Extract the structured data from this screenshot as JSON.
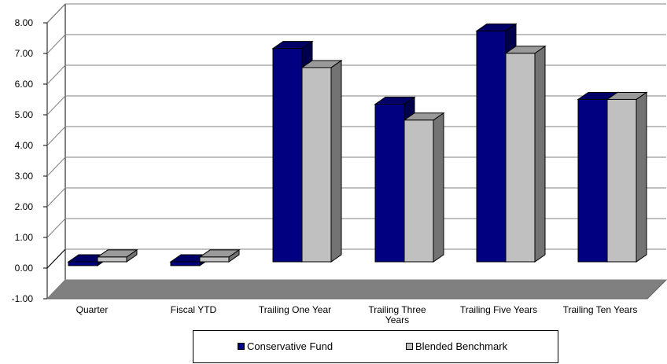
{
  "chart_data": {
    "type": "bar",
    "categories": [
      "Quarter",
      "Fiscal YTD",
      "Trailing One Year",
      "Trailing Three Years",
      "Trailing Five Years",
      "Trailing Ten Years"
    ],
    "series": [
      {
        "name": "Conservative Fund",
        "color": "#000080",
        "values": [
          -0.12,
          -0.12,
          6.7,
          4.95,
          7.25,
          5.1
        ]
      },
      {
        "name": "Blended Benchmark",
        "color": "#C0C0C0",
        "values": [
          0.15,
          0.15,
          6.1,
          4.45,
          6.55,
          5.1
        ]
      }
    ],
    "y_ticks": [
      "8.00",
      "7.00",
      "6.00",
      "5.00",
      "4.00",
      "3.00",
      "2.00",
      "1.00",
      "0.00",
      "-1.00"
    ],
    "ylim": [
      -1,
      8
    ],
    "grid": true,
    "legend_position": "bottom",
    "style": "3d-column"
  }
}
